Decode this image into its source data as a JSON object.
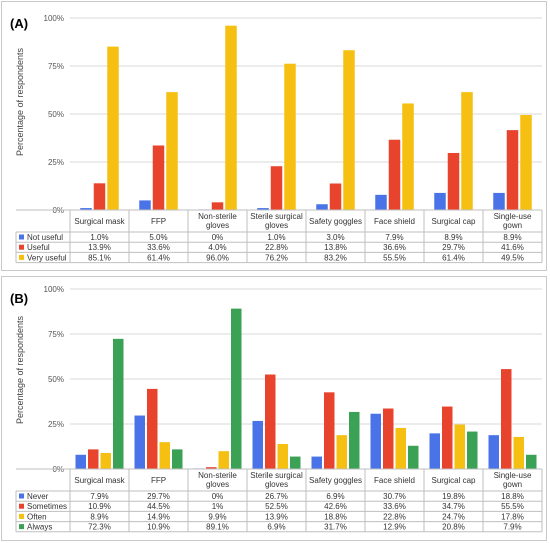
{
  "panels": [
    {
      "label": "(A)",
      "ylabel": "Percentage of respondents",
      "chart_data": {
        "type": "bar",
        "categories": [
          "Surgical mask",
          "FFP",
          "Non-sterile gloves",
          "Sterile surgical gloves",
          "Safety goggles",
          "Face shield",
          "Surgical cap",
          "Single-use gown"
        ],
        "category_lines": [
          [
            "Surgical mask"
          ],
          [
            "FFP"
          ],
          [
            "Non-sterile",
            "gloves"
          ],
          [
            "Sterile surgical",
            "gloves"
          ],
          [
            "Safety goggles"
          ],
          [
            "Face shield"
          ],
          [
            "Surgical cap"
          ],
          [
            "Single-use",
            "gown"
          ]
        ],
        "ylim": [
          0,
          100
        ],
        "yticks": [
          0,
          25,
          50,
          75,
          100
        ],
        "ytick_labels": [
          "0%",
          "25%",
          "50%",
          "75%",
          "100%"
        ],
        "legend_placement": "table-below",
        "series": [
          {
            "name": "Not useful",
            "color": "#4a73e8",
            "values": [
              1.0,
              5.0,
              0,
              1.0,
              3.0,
              7.9,
              8.9,
              8.9
            ],
            "labels": [
              "1.0%",
              "5.0%",
              "0%",
              "1.0%",
              "3.0%",
              "7.9%",
              "8.9%",
              "8.9%"
            ]
          },
          {
            "name": "Useful",
            "color": "#e8432d",
            "values": [
              13.9,
              33.6,
              4.0,
              22.8,
              13.8,
              36.6,
              29.7,
              41.6
            ],
            "labels": [
              "13.9%",
              "33.6%",
              "4.0%",
              "22.8%",
              "13.8%",
              "36.6%",
              "29.7%",
              "41.6%"
            ]
          },
          {
            "name": "Very useful",
            "color": "#f5c011",
            "values": [
              85.1,
              61.4,
              96.0,
              76.2,
              83.2,
              55.5,
              61.4,
              49.5
            ],
            "labels": [
              "85.1%",
              "61.4%",
              "96.0%",
              "76.2%",
              "83.2%",
              "55.5%",
              "61.4%",
              "49.5%"
            ]
          }
        ]
      }
    },
    {
      "label": "(B)",
      "ylabel": "Percentage of respondents",
      "chart_data": {
        "type": "bar",
        "categories": [
          "Surgical mask",
          "FFP",
          "Non-sterile gloves",
          "Sterile surgical gloves",
          "Safety goggles",
          "Face shield",
          "Surgical cap",
          "Single-use gown"
        ],
        "category_lines": [
          [
            "Surgical mask"
          ],
          [
            "FFP"
          ],
          [
            "Non-sterile",
            "gloves"
          ],
          [
            "Sterile surgical",
            "gloves"
          ],
          [
            "Safety goggles"
          ],
          [
            "Face shield"
          ],
          [
            "Surgical cap"
          ],
          [
            "Single-use",
            "gown"
          ]
        ],
        "ylim": [
          0,
          100
        ],
        "yticks": [
          0,
          25,
          50,
          75,
          100
        ],
        "ytick_labels": [
          "0%",
          "25%",
          "50%",
          "75%",
          "100%"
        ],
        "legend_placement": "table-below",
        "series": [
          {
            "name": "Never",
            "color": "#4a73e8",
            "values": [
              7.9,
              29.7,
              0,
              26.7,
              6.9,
              30.7,
              19.8,
              18.8
            ],
            "labels": [
              "7.9%",
              "29.7%",
              "0%",
              "26.7%",
              "6.9%",
              "30.7%",
              "19.8%",
              "18.8%"
            ]
          },
          {
            "name": "Sometimes",
            "color": "#e8432d",
            "values": [
              10.9,
              44.5,
              1,
              52.5,
              42.6,
              33.6,
              34.7,
              55.5
            ],
            "labels": [
              "10.9%",
              "44.5%",
              "1%",
              "52.5%",
              "42.6%",
              "33.6%",
              "34.7%",
              "55.5%"
            ]
          },
          {
            "name": "Often",
            "color": "#f5c011",
            "values": [
              8.9,
              14.9,
              9.9,
              13.9,
              18.8,
              22.8,
              24.7,
              17.8
            ],
            "labels": [
              "8.9%",
              "14.9%",
              "9.9%",
              "13.9%",
              "18.8%",
              "22.8%",
              "24.7%",
              "17.8%"
            ]
          },
          {
            "name": "Always",
            "color": "#3aa155",
            "values": [
              72.3,
              10.9,
              89.1,
              6.9,
              31.7,
              12.9,
              20.8,
              7.9
            ],
            "labels": [
              "72.3%",
              "10.9%",
              "89.1%",
              "6.9%",
              "31.7%",
              "12.9%",
              "20.8%",
              "7.9%"
            ]
          }
        ]
      }
    }
  ]
}
